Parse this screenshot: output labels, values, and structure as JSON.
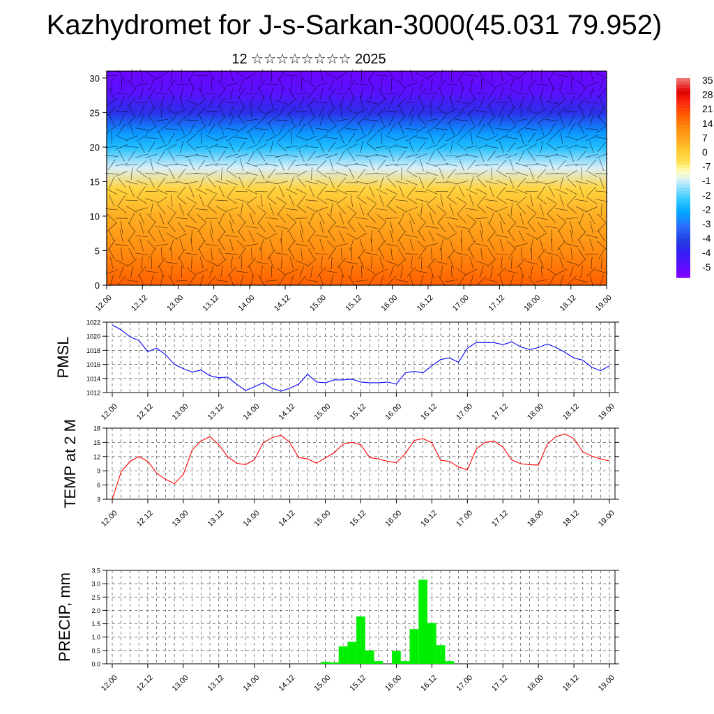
{
  "title": "Kazhydromet for J-s-Sarkan-3000(45.031 79.952)",
  "subtitle": "12 ☆☆☆☆☆☆☆☆ 2025",
  "time_labels": [
    "12.00",
    "12.12",
    "13.00",
    "13.12",
    "14.00",
    "14.12",
    "15.00",
    "15.12",
    "16.00",
    "16.12",
    "17.00",
    "17.12",
    "18.00",
    "18.12",
    "19.00"
  ],
  "colorbar_labels": [
    "35",
    "28",
    "21",
    "14",
    "7",
    "0",
    "-7",
    "-1",
    "-2",
    "-2",
    "-3",
    "-4",
    "-4",
    "-5"
  ],
  "colors": {
    "pmsl": "#0000ff",
    "temp": "#ff0000",
    "precip": "#00ee00"
  },
  "chart_data": [
    {
      "type": "heatmap",
      "name_hint": "cross-section",
      "y_ticks": [
        "0",
        "5",
        "10",
        "15",
        "20",
        "25",
        "30"
      ],
      "ylim": [
        0,
        31
      ],
      "x_range": [
        "12.00",
        "19.00"
      ],
      "description_levels": [
        {
          "height": 0,
          "temp": 20
        },
        {
          "height": 5,
          "temp": 14
        },
        {
          "height": 10,
          "temp": 7
        },
        {
          "height": 14,
          "temp": 0
        },
        {
          "height": 17,
          "temp": -12
        },
        {
          "height": 20,
          "temp": -24
        },
        {
          "height": 22,
          "temp": -30
        },
        {
          "height": 25,
          "temp": -45
        },
        {
          "height": 28,
          "temp": -55
        },
        {
          "height": 31,
          "temp": -58
        }
      ]
    },
    {
      "type": "line",
      "ylabel": "PMSL",
      "y_ticks": [
        "1022",
        "1020",
        "1018",
        "1016",
        "1014",
        "1012"
      ],
      "ylim": [
        1012,
        1022
      ],
      "x_start_hours": 0,
      "x_step_hours": 3,
      "values": [
        1021.6,
        1020.9,
        1019.9,
        1019.4,
        1017.8,
        1018.3,
        1017.4,
        1016.0,
        1015.4,
        1014.9,
        1015.2,
        1014.4,
        1014.1,
        1014.2,
        1013.2,
        1012.3,
        1012.8,
        1013.4,
        1012.6,
        1012.2,
        1012.6,
        1013.2,
        1014.6,
        1013.5,
        1013.4,
        1013.8,
        1013.8,
        1013.9,
        1013.5,
        1013.4,
        1013.4,
        1013.5,
        1013.2,
        1014.8,
        1015.0,
        1014.8,
        1015.8,
        1016.7,
        1016.9,
        1016.3,
        1018.3,
        1019.1,
        1019.1,
        1019.1,
        1018.8,
        1019.2,
        1018.5,
        1018.1,
        1018.4,
        1018.9,
        1018.4,
        1017.7,
        1016.9,
        1016.6,
        1015.6,
        1015.1,
        1015.8
      ]
    },
    {
      "type": "line",
      "ylabel": "TEMP at 2 M",
      "y_ticks": [
        "18",
        "15",
        "12",
        "9",
        "6",
        "3"
      ],
      "ylim": [
        3,
        18
      ],
      "x_start_hours": 0,
      "x_step_hours": 3,
      "values": [
        3.0,
        8.8,
        11.0,
        12.0,
        11.0,
        8.5,
        7.2,
        6.3,
        8.2,
        13.4,
        15.3,
        16.2,
        14.5,
        12.0,
        10.6,
        10.3,
        11.3,
        14.9,
        16.0,
        16.5,
        15.0,
        11.8,
        11.5,
        10.6,
        11.7,
        12.8,
        14.6,
        15.0,
        14.5,
        11.8,
        11.5,
        11.0,
        10.7,
        12.6,
        15.4,
        15.8,
        14.9,
        11.2,
        11.0,
        9.8,
        9.2,
        13.6,
        15.0,
        15.3,
        14.0,
        11.3,
        10.5,
        10.3,
        10.2,
        14.6,
        16.2,
        16.8,
        15.8,
        13.0,
        12.1,
        11.5,
        11.1
      ]
    },
    {
      "type": "bar",
      "ylabel": "PRECIP, mm",
      "y_ticks": [
        "3.5",
        "3.0",
        "2.5",
        "2.0",
        "1.5",
        "1.0",
        "0.5",
        "0.0"
      ],
      "ylim": [
        0,
        3.5
      ],
      "x_start_hours": 0,
      "x_step_hours": 3,
      "values": [
        0,
        0,
        0,
        0,
        0,
        0,
        0,
        0,
        0,
        0,
        0,
        0,
        0,
        0,
        0,
        0,
        0,
        0,
        0,
        0,
        0,
        0,
        0,
        0,
        0.07,
        0.05,
        0.65,
        0.82,
        1.77,
        0.5,
        0.1,
        0,
        0.48,
        0.1,
        1.3,
        3.15,
        1.53,
        0.7,
        0.1,
        0,
        0,
        0,
        0,
        0,
        0,
        0,
        0,
        0,
        0,
        0,
        0,
        0,
        0,
        0,
        0,
        0,
        0
      ]
    }
  ]
}
